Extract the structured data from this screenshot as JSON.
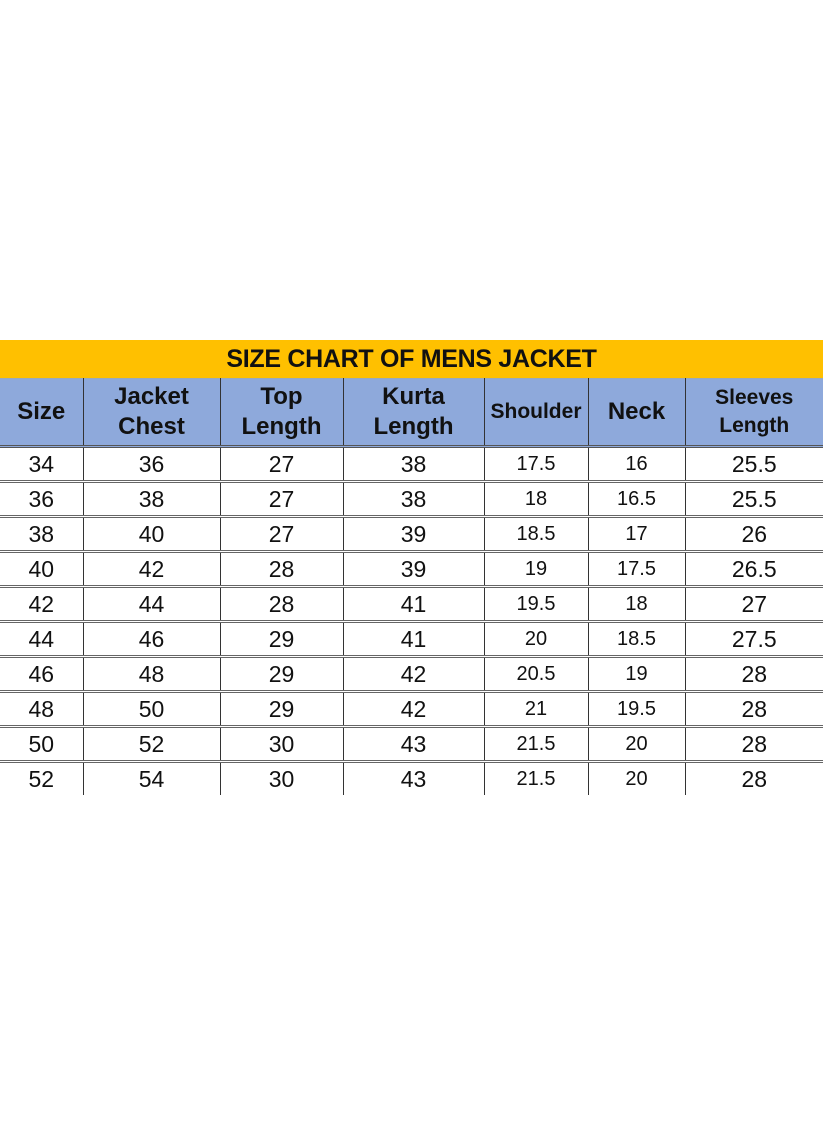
{
  "chart_data": {
    "type": "table",
    "title": "SIZE CHART OF MENS JACKET",
    "columns": [
      "Size",
      "Jacket Chest",
      "Top Length",
      "Kurta Length",
      "Shoulder",
      "Neck",
      "Sleeves Length"
    ],
    "rows": [
      [
        "34",
        "36",
        "27",
        "38",
        "17.5",
        "16",
        "25.5"
      ],
      [
        "36",
        "38",
        "27",
        "38",
        "18",
        "16.5",
        "25.5"
      ],
      [
        "38",
        "40",
        "27",
        "39",
        "18.5",
        "17",
        "26"
      ],
      [
        "40",
        "42",
        "28",
        "39",
        "19",
        "17.5",
        "26.5"
      ],
      [
        "42",
        "44",
        "28",
        "41",
        "19.5",
        "18",
        "27"
      ],
      [
        "44",
        "46",
        "29",
        "41",
        "20",
        "18.5",
        "27.5"
      ],
      [
        "46",
        "48",
        "29",
        "42",
        "20.5",
        "19",
        "28"
      ],
      [
        "48",
        "50",
        "29",
        "42",
        "21",
        "19.5",
        "28"
      ],
      [
        "50",
        "52",
        "30",
        "43",
        "21.5",
        "20",
        "28"
      ],
      [
        "52",
        "54",
        "30",
        "43",
        "21.5",
        "20",
        "28"
      ]
    ],
    "colors": {
      "title_band": "#FFC000",
      "header": "#8EA9DB"
    }
  }
}
